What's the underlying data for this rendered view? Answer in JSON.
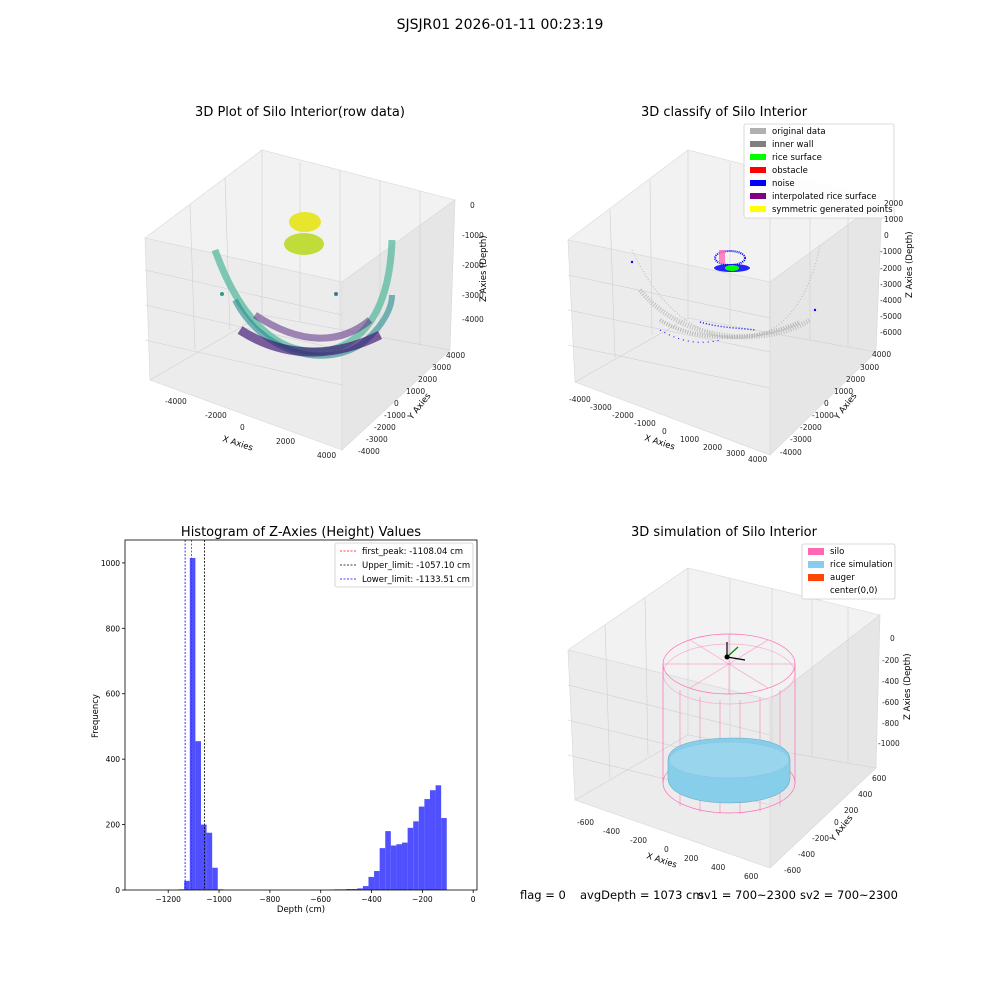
{
  "figure": {
    "suptitle": "SJSJR01 2026-01-11 00:23:19"
  },
  "colors": {
    "hist_bar": "#5050ff",
    "silo": "#ff69b4",
    "rice": "#87ceeb",
    "auger": "#ff4500",
    "original": "#b0b0b0",
    "inner_wall": "#808080",
    "rice_surface": "#00ff00",
    "obstacle": "#ff0000",
    "noise": "#0000ff",
    "interp": "#800080",
    "symmetric": "#ffff00"
  },
  "panel_raw": {
    "title": "3D Plot of Silo Interior(row data)",
    "x_label": "X Axies",
    "y_label": "Y Axies",
    "z_label": "Z Axies (Depth)",
    "x_ticks": [
      "-4000",
      "-2000",
      "0",
      "2000",
      "4000"
    ],
    "y_ticks": [
      "-4000",
      "-3000",
      "-2000",
      "-1000",
      "0",
      "1000",
      "2000",
      "3000",
      "4000"
    ],
    "z_ticks": [
      "0",
      "-1000",
      "-2000",
      "-3000",
      "-4000"
    ]
  },
  "panel_classify": {
    "title": "3D classify of Silo Interior",
    "x_label": "X Axies",
    "y_label": "Y Axies",
    "z_label": "Z Axies (Depth)",
    "x_ticks": [
      "-4000",
      "-3000",
      "-2000",
      "-1000",
      "0",
      "1000",
      "2000",
      "3000",
      "4000"
    ],
    "y_ticks": [
      "-4000",
      "-3000",
      "-2000",
      "-1000",
      "0",
      "1000",
      "2000",
      "3000",
      "4000"
    ],
    "z_ticks": [
      "2000",
      "1000",
      "0",
      "-1000",
      "-2000",
      "-3000",
      "-4000",
      "-5000",
      "-6000"
    ],
    "legend": [
      {
        "label": "original data",
        "color": "#b0b0b0"
      },
      {
        "label": "inner wall",
        "color": "#808080"
      },
      {
        "label": "rice surface",
        "color": "#00ff00"
      },
      {
        "label": "obstacle",
        "color": "#ff0000"
      },
      {
        "label": "noise",
        "color": "#0000ff"
      },
      {
        "label": "interpolated rice surface",
        "color": "#800080"
      },
      {
        "label": "symmetric generated points",
        "color": "#ffff00"
      }
    ]
  },
  "panel_sim": {
    "title": "3D simulation of Silo Interior",
    "x_label": "X Axies",
    "y_label": "Y Axies",
    "z_label": "Z Axies (Depth)",
    "x_ticks": [
      "-600",
      "-400",
      "-200",
      "0",
      "200",
      "400",
      "600"
    ],
    "y_ticks": [
      "-600",
      "-400",
      "-200",
      "0",
      "200",
      "400",
      "600"
    ],
    "z_ticks": [
      "0",
      "-200",
      "-400",
      "-600",
      "-800",
      "-1000"
    ],
    "legend": [
      {
        "label": "silo",
        "color": "#ff69b4"
      },
      {
        "label": "rice simulation",
        "color": "#87ceeb"
      },
      {
        "label": "auger",
        "color": "#ff4500"
      },
      {
        "label": "center(0,0)",
        "color": ""
      }
    ]
  },
  "status": {
    "flag": "flag = 0",
    "avg_depth": "avgDepth = 1073 cm",
    "sv1": "sv1 = 700~2300",
    "sv2": "sv2 = 700~2300"
  },
  "chart_data": [
    {
      "type": "bar",
      "title": "Histogram of Z-Axies (Height) Values",
      "xlabel": "Depth (cm)",
      "ylabel": "Frequency",
      "xlim": [
        -1370,
        15
      ],
      "ylim": [
        0,
        1070
      ],
      "x_ticks": [
        -1200,
        -1000,
        -800,
        -600,
        -400,
        -200,
        0
      ],
      "y_ticks": [
        0,
        200,
        400,
        600,
        800,
        1000
      ],
      "bin_width": 22,
      "bins": [
        {
          "x": -1148,
          "y": 2
        },
        {
          "x": -1126,
          "y": 28
        },
        {
          "x": -1104,
          "y": 1015
        },
        {
          "x": -1082,
          "y": 455
        },
        {
          "x": -1060,
          "y": 200
        },
        {
          "x": -1038,
          "y": 175
        },
        {
          "x": -1016,
          "y": 68
        },
        {
          "x": -994,
          "y": 2
        },
        {
          "x": -555,
          "y": 1
        },
        {
          "x": -533,
          "y": 2
        },
        {
          "x": -511,
          "y": 2
        },
        {
          "x": -489,
          "y": 3
        },
        {
          "x": -467,
          "y": 3
        },
        {
          "x": -445,
          "y": 5
        },
        {
          "x": -423,
          "y": 12
        },
        {
          "x": -401,
          "y": 40
        },
        {
          "x": -379,
          "y": 58
        },
        {
          "x": -357,
          "y": 128
        },
        {
          "x": -335,
          "y": 180
        },
        {
          "x": -313,
          "y": 136
        },
        {
          "x": -291,
          "y": 140
        },
        {
          "x": -269,
          "y": 145
        },
        {
          "x": -247,
          "y": 190
        },
        {
          "x": -225,
          "y": 210
        },
        {
          "x": -203,
          "y": 255
        },
        {
          "x": -181,
          "y": 278
        },
        {
          "x": -159,
          "y": 305
        },
        {
          "x": -137,
          "y": 320
        },
        {
          "x": -115,
          "y": 220
        }
      ],
      "reference_lines": [
        {
          "label": "first_peak: -1108.04 cm",
          "x": -1108.04,
          "color": "#ff0000"
        },
        {
          "label": "Upper_limit: -1057.10 cm",
          "x": -1057.1,
          "color": "#000000"
        },
        {
          "label": "Lower_limit: -1133.51 cm",
          "x": -1133.51,
          "color": "#0000ff"
        }
      ],
      "legend": "top-right"
    }
  ]
}
